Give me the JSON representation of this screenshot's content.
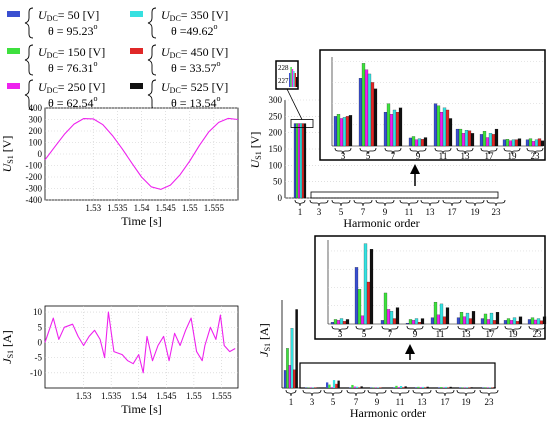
{
  "legend": [
    {
      "u_label": "U",
      "u_sub": "DC",
      "u_value": "= 50  [V]",
      "theta_label": "θ",
      "theta_value": "= 95.23",
      "deg": "o",
      "color": "#3a4fd0"
    },
    {
      "u_label": "U",
      "u_sub": "DC",
      "u_value": "= 350 [V]",
      "theta_label": "θ",
      "theta_value": "=49.62",
      "deg": "o",
      "color": "#36e0e0"
    },
    {
      "u_label": "U",
      "u_sub": "DC",
      "u_value": "= 150 [V]",
      "theta_label": "θ",
      "theta_value": "= 76.31",
      "deg": "o",
      "color": "#3ee03e"
    },
    {
      "u_label": "U",
      "u_sub": "DC",
      "u_value": "= 450  [V]",
      "theta_label": "θ",
      "theta_value": "= 33.57",
      "deg": "o",
      "color": "#e02828"
    },
    {
      "u_label": "U",
      "u_sub": "DC",
      "u_value": "= 250 [V]",
      "theta_label": "θ",
      "theta_value": "= 62.54",
      "deg": "o",
      "color": "#ee22ee"
    },
    {
      "u_label": "U",
      "u_sub": "DC",
      "u_value": "= 525  [V]",
      "theta_label": "θ",
      "theta_value": "= 13.54",
      "deg": "o",
      "color": "#111111"
    }
  ],
  "chart_data": [
    {
      "type": "line",
      "id": "voltage-waveform",
      "xlabel": "Time [s]",
      "ylabel_main": "U",
      "ylabel_sub": "S1",
      "ylabel_unit": " [V]",
      "xlim": [
        1.52,
        1.56
      ],
      "ylim": [
        -400,
        400
      ],
      "xticks": [
        1.53,
        1.535,
        1.54,
        1.545,
        1.55,
        1.555
      ],
      "xtick_labels": [
        "1.53",
        "1.535",
        "1.54",
        "1.545",
        "1.55",
        "1.555"
      ],
      "yticks": [
        -400,
        -300,
        -200,
        -100,
        0,
        100,
        200,
        300,
        400
      ],
      "ytick_labels": [
        "-400",
        "-300",
        "-200",
        "-100",
        "0",
        "100",
        "200",
        "300",
        "400"
      ],
      "grid": true,
      "color": "#ee22ee",
      "series": [
        {
          "x": [
            1.52,
            1.522,
            1.524,
            1.526,
            1.528,
            1.53,
            1.532,
            1.534,
            1.536,
            1.538,
            1.54,
            1.542,
            1.544,
            1.546,
            1.548,
            1.55,
            1.552,
            1.554,
            1.556,
            1.558,
            1.56
          ],
          "y": [
            -50,
            60,
            170,
            260,
            308,
            305,
            255,
            160,
            45,
            -80,
            -200,
            -285,
            -308,
            -270,
            -180,
            -60,
            75,
            195,
            275,
            310,
            300
          ]
        }
      ]
    },
    {
      "type": "bar",
      "id": "voltage-spectrum",
      "xlabel": "Harmonic order",
      "ylabel_main": "U",
      "ylabel_sub": "S1",
      "ylabel_unit": " [V]",
      "ylim": [
        0,
        300
      ],
      "yticks": [
        0,
        50,
        100,
        150,
        200,
        250,
        300
      ],
      "ytick_labels": [
        "0",
        "50",
        "100",
        "150",
        "200",
        "250",
        "300"
      ],
      "categories": [
        "1",
        "3",
        "5",
        "7",
        "9",
        "11",
        "13",
        "17",
        "19",
        "23"
      ],
      "fundamental_values": [
        228,
        228,
        228,
        228,
        228,
        228
      ],
      "inset_fundamental": {
        "ytick_labels": [
          "228",
          "227"
        ],
        "values": [
          227.5,
          227.8,
          227.7,
          227.6,
          227.5,
          227.3
        ]
      },
      "zoom_categories": [
        "3",
        "5",
        "7",
        "9",
        "11",
        "13",
        "17",
        "19",
        "23"
      ],
      "zoom_values": [
        [
          1.4,
          3.2,
          1.6,
          0.38,
          2.0,
          0.8,
          0.55,
          0.3,
          0.3
        ],
        [
          1.5,
          3.9,
          2.0,
          0.45,
          1.9,
          0.8,
          0.7,
          0.32,
          0.35
        ],
        [
          1.3,
          3.6,
          1.5,
          0.3,
          1.6,
          0.6,
          0.4,
          0.25,
          0.22
        ],
        [
          1.35,
          3.4,
          1.7,
          0.35,
          1.8,
          0.75,
          0.6,
          0.3,
          0.3
        ],
        [
          1.4,
          3.0,
          1.6,
          0.32,
          1.7,
          0.72,
          0.55,
          0.3,
          0.35
        ],
        [
          1.45,
          2.7,
          1.8,
          0.4,
          1.3,
          0.6,
          0.8,
          0.35,
          0.25
        ]
      ],
      "zoom_ymax": 4.2
    },
    {
      "type": "line",
      "id": "current-waveform",
      "xlabel": "Time [s]",
      "ylabel_main": "J",
      "ylabel_sub": "S1",
      "ylabel_unit": " [A]",
      "xlim": [
        1.523,
        1.558
      ],
      "ylim": [
        -15,
        12
      ],
      "xticks": [
        1.53,
        1.535,
        1.54,
        1.545,
        1.55,
        1.555
      ],
      "xtick_labels": [
        "1.53",
        "1.535",
        "1.54",
        "1.545",
        "1.55",
        "1.555"
      ],
      "yticks": [
        -10,
        -5,
        0,
        5,
        10
      ],
      "ytick_labels": [
        "-10",
        "-5",
        "0",
        "5",
        "10"
      ],
      "grid": true,
      "color": "#ee22ee",
      "series": [
        {
          "x": [
            1.523,
            1.5245,
            1.5255,
            1.5265,
            1.528,
            1.529,
            1.53,
            1.531,
            1.532,
            1.533,
            1.5338,
            1.5345,
            1.5355,
            1.537,
            1.538,
            1.539,
            1.54,
            1.5408,
            1.5415,
            1.5425,
            1.5435,
            1.5445,
            1.5455,
            1.5465,
            1.5475,
            1.5485,
            1.5495,
            1.5505,
            1.5515,
            1.552,
            1.553,
            1.554,
            1.5548,
            1.5555,
            1.5565,
            1.5575
          ],
          "y": [
            0,
            8,
            1,
            5,
            6,
            2,
            -1,
            2,
            4,
            1,
            -5,
            10,
            -3,
            -4,
            -6,
            -7,
            -4,
            -10,
            2,
            -6,
            -1,
            2,
            -6,
            3,
            -1,
            4,
            8,
            -3,
            -6,
            -1,
            5,
            1,
            9,
            -1,
            -3,
            -2
          ]
        }
      ]
    },
    {
      "type": "bar",
      "id": "current-spectrum",
      "xlabel": "Harmonic order",
      "ylabel_main": "J",
      "ylabel_sub": "S1",
      "ylabel_unit": " [A]",
      "categories": [
        "1",
        "3",
        "5",
        "7",
        "9",
        "11",
        "13",
        "17",
        "19",
        "23"
      ],
      "fundamental_values": [
        2.8,
        6.3,
        3.6,
        9.5,
        2.9,
        12.5
      ],
      "fundamental_ymax": 14,
      "zoom_categories": [
        "3",
        "5",
        "7",
        "9",
        "11",
        "13",
        "17",
        "19",
        "23"
      ],
      "zoom_values": [
        [
          0.1,
          3.1,
          0.2,
          0.05,
          0.35,
          0.35,
          0.3,
          0.2,
          0.25
        ],
        [
          0.25,
          1.9,
          1.7,
          0.25,
          1.2,
          0.65,
          0.55,
          0.3,
          0.35
        ],
        [
          0.2,
          0.45,
          0.8,
          0.2,
          0.5,
          0.4,
          0.25,
          0.2,
          0.22
        ],
        [
          0.3,
          4.4,
          0.7,
          0.3,
          1.1,
          0.6,
          0.6,
          0.35,
          0.3
        ],
        [
          0.15,
          2.3,
          0.3,
          0.1,
          0.4,
          0.3,
          0.2,
          0.15,
          0.18
        ],
        [
          0.25,
          4.1,
          0.9,
          0.3,
          0.9,
          0.7,
          0.65,
          0.4,
          0.4
        ]
      ],
      "zoom_ymax": 4.6
    }
  ]
}
